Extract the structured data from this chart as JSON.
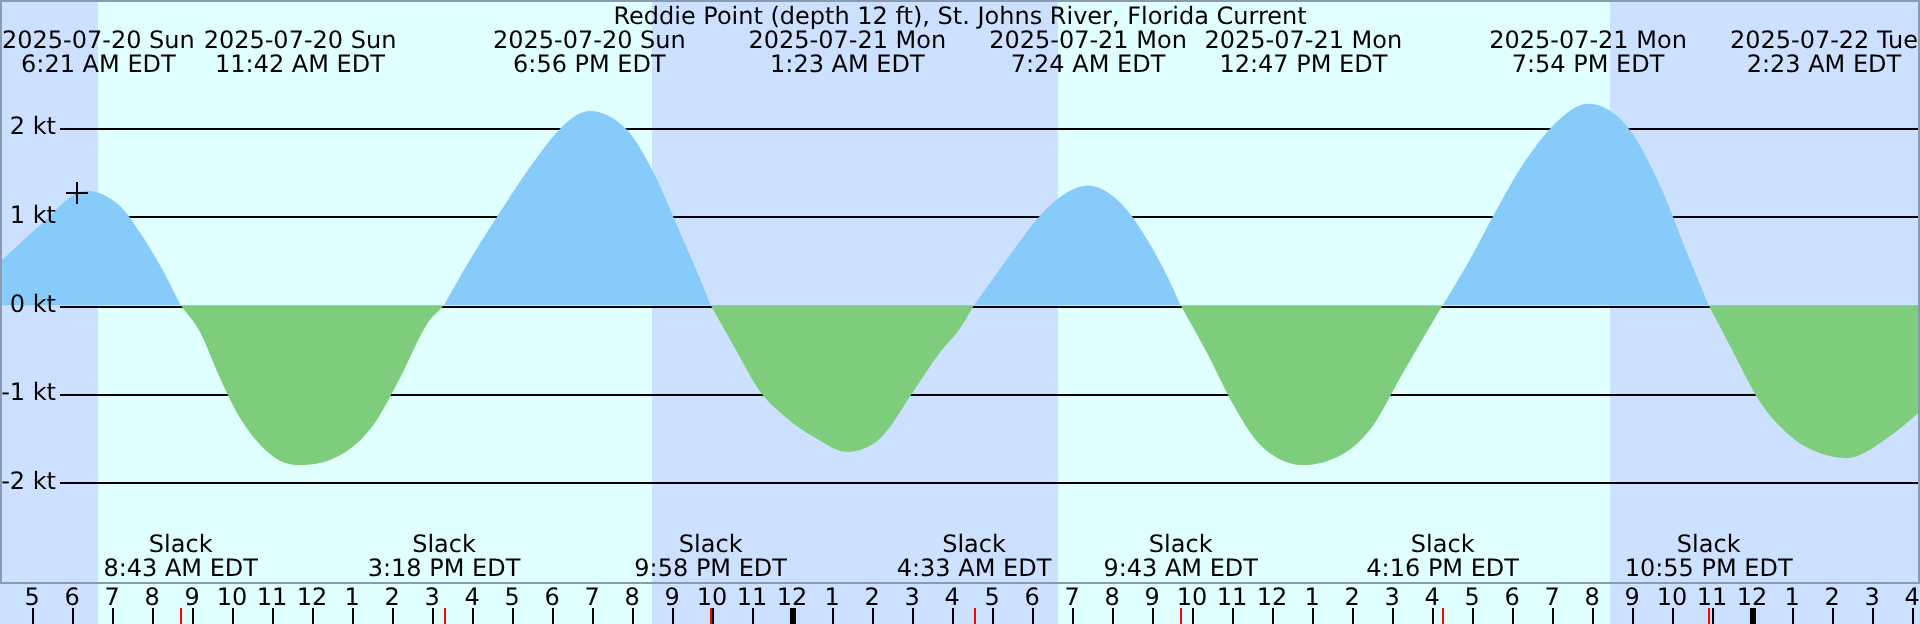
{
  "chart_data": {
    "type": "area",
    "title": "Reddie Point (depth 12 ft), St. Johns River, Florida Current",
    "x": [
      "2025-07-20T04:12",
      "2025-07-20T05:12",
      "2025-07-20T06:21",
      "2025-07-20T07:12",
      "2025-07-20T07:42",
      "2025-07-20T08:12",
      "2025-07-20T08:43",
      "2025-07-20T09:12",
      "2025-07-20T09:42",
      "2025-07-20T10:12",
      "2025-07-20T10:42",
      "2025-07-20T11:12",
      "2025-07-20T11:42",
      "2025-07-20T12:42",
      "2025-07-20T13:32",
      "2025-07-20T14:12",
      "2025-07-20T14:52",
      "2025-07-20T15:18",
      "2025-07-20T15:52",
      "2025-07-20T16:42",
      "2025-07-20T17:32",
      "2025-07-20T18:22",
      "2025-07-20T18:56",
      "2025-07-20T19:52",
      "2025-07-20T20:32",
      "2025-07-20T21:12",
      "2025-07-20T21:42",
      "2025-07-20T21:58",
      "2025-07-20T22:32",
      "2025-07-20T23:12",
      "2025-07-20T23:52",
      "2025-07-21T00:32",
      "2025-07-21T01:23",
      "2025-07-21T02:12",
      "2025-07-21T03:02",
      "2025-07-21T03:42",
      "2025-07-21T04:12",
      "2025-07-21T04:33",
      "2025-07-21T05:12",
      "2025-07-21T06:12",
      "2025-07-21T06:52",
      "2025-07-21T07:24",
      "2025-07-21T08:12",
      "2025-07-21T08:52",
      "2025-07-21T09:22",
      "2025-07-21T09:43",
      "2025-07-21T10:22",
      "2025-07-21T11:02",
      "2025-07-21T11:42",
      "2025-07-21T12:47",
      "2025-07-21T13:52",
      "2025-07-21T14:32",
      "2025-07-21T15:12",
      "2025-07-21T15:52",
      "2025-07-21T16:16",
      "2025-07-21T16:52",
      "2025-07-21T17:32",
      "2025-07-21T18:22",
      "2025-07-21T19:12",
      "2025-07-21T19:54",
      "2025-07-21T20:52",
      "2025-07-21T21:42",
      "2025-07-21T22:22",
      "2025-07-21T22:55",
      "2025-07-21T23:32",
      "2025-07-22T00:12",
      "2025-07-22T01:02",
      "2025-07-22T01:52",
      "2025-07-22T02:23",
      "2025-07-22T03:22",
      "2025-07-22T04:12"
    ],
    "series": [
      {
        "color": "#87cbfa",
        "values": [
          0.49,
          0.9,
          1.29,
          1.12,
          0.82,
          0.45,
          0,
          null,
          null,
          null,
          null,
          null,
          null,
          null,
          null,
          null,
          null,
          0,
          0.45,
          1.05,
          1.61,
          2.06,
          2.19,
          1.98,
          1.5,
          0.82,
          0.3,
          0,
          null,
          null,
          null,
          null,
          null,
          null,
          null,
          null,
          null,
          0,
          0.41,
          1.01,
          1.27,
          1.35,
          1.16,
          0.75,
          0.34,
          0,
          null,
          null,
          null,
          null,
          null,
          null,
          null,
          null,
          0,
          0.45,
          1.01,
          1.65,
          2.1,
          2.27,
          2.02,
          1.35,
          0.6,
          0,
          null,
          null,
          null,
          null,
          null,
          null,
          null
        ]
      },
      {
        "color": "#7dcd7d",
        "values": [
          null,
          null,
          null,
          null,
          null,
          null,
          0,
          -0.3,
          -0.82,
          -1.27,
          -1.57,
          -1.75,
          -1.8,
          -1.69,
          -1.35,
          -0.82,
          -0.22,
          0,
          null,
          null,
          null,
          null,
          null,
          null,
          null,
          null,
          null,
          0,
          -0.45,
          -0.97,
          -1.27,
          -1.48,
          -1.65,
          -1.5,
          -0.97,
          -0.53,
          -0.26,
          0,
          null,
          null,
          null,
          null,
          null,
          null,
          null,
          0,
          -0.53,
          -1.12,
          -1.57,
          -1.8,
          -1.65,
          -1.35,
          -0.82,
          -0.3,
          0,
          null,
          null,
          null,
          null,
          null,
          null,
          null,
          null,
          0,
          -0.53,
          -1.09,
          -1.5,
          -1.69,
          -1.72,
          -1.5,
          -1.2
        ]
      }
    ],
    "xlim": [
      "2025-07-20T04:12",
      "2025-07-22T04:12"
    ],
    "xticks": [
      {
        "value": "2025-07-20T05:00",
        "label": "5"
      },
      {
        "value": "2025-07-20T06:00",
        "label": "6"
      },
      {
        "value": "2025-07-20T07:00",
        "label": "7"
      },
      {
        "value": "2025-07-20T08:00",
        "label": "8"
      },
      {
        "value": "2025-07-20T09:00",
        "label": "9"
      },
      {
        "value": "2025-07-20T10:00",
        "label": "10"
      },
      {
        "value": "2025-07-20T11:00",
        "label": "11"
      },
      {
        "value": "2025-07-20T12:00",
        "label": "12"
      },
      {
        "value": "2025-07-20T13:00",
        "label": "1"
      },
      {
        "value": "2025-07-20T14:00",
        "label": "2"
      },
      {
        "value": "2025-07-20T15:00",
        "label": "3"
      },
      {
        "value": "2025-07-20T16:00",
        "label": "4"
      },
      {
        "value": "2025-07-20T17:00",
        "label": "5"
      },
      {
        "value": "2025-07-20T18:00",
        "label": "6"
      },
      {
        "value": "2025-07-20T19:00",
        "label": "7"
      },
      {
        "value": "2025-07-20T20:00",
        "label": "8"
      },
      {
        "value": "2025-07-20T21:00",
        "label": "9"
      },
      {
        "value": "2025-07-20T22:00",
        "label": "10"
      },
      {
        "value": "2025-07-20T23:00",
        "label": "11"
      },
      {
        "value": "2025-07-21T00:00",
        "label": "12"
      },
      {
        "value": "2025-07-21T01:00",
        "label": "1"
      },
      {
        "value": "2025-07-21T02:00",
        "label": "2"
      },
      {
        "value": "2025-07-21T03:00",
        "label": "3"
      },
      {
        "value": "2025-07-21T04:00",
        "label": "4"
      },
      {
        "value": "2025-07-21T05:00",
        "label": "5"
      },
      {
        "value": "2025-07-21T06:00",
        "label": "6"
      },
      {
        "value": "2025-07-21T07:00",
        "label": "7"
      },
      {
        "value": "2025-07-21T08:00",
        "label": "8"
      },
      {
        "value": "2025-07-21T09:00",
        "label": "9"
      },
      {
        "value": "2025-07-21T10:00",
        "label": "10"
      },
      {
        "value": "2025-07-21T11:00",
        "label": "11"
      },
      {
        "value": "2025-07-21T12:00",
        "label": "12"
      },
      {
        "value": "2025-07-21T13:00",
        "label": "1"
      },
      {
        "value": "2025-07-21T14:00",
        "label": "2"
      },
      {
        "value": "2025-07-21T15:00",
        "label": "3"
      },
      {
        "value": "2025-07-21T16:00",
        "label": "4"
      },
      {
        "value": "2025-07-21T17:00",
        "label": "5"
      },
      {
        "value": "2025-07-21T18:00",
        "label": "6"
      },
      {
        "value": "2025-07-21T19:00",
        "label": "7"
      },
      {
        "value": "2025-07-21T20:00",
        "label": "8"
      },
      {
        "value": "2025-07-21T21:00",
        "label": "9"
      },
      {
        "value": "2025-07-21T22:00",
        "label": "10"
      },
      {
        "value": "2025-07-21T23:00",
        "label": "11"
      },
      {
        "value": "2025-07-22T00:00",
        "label": "12"
      },
      {
        "value": "2025-07-22T01:00",
        "label": "1"
      },
      {
        "value": "2025-07-22T02:00",
        "label": "2"
      },
      {
        "value": "2025-07-22T03:00",
        "label": "3"
      },
      {
        "value": "2025-07-22T04:00",
        "label": "4"
      }
    ],
    "ylim": [
      -3.14,
      3.44
    ],
    "yticks": [
      {
        "value": -2,
        "label": "-2 kt"
      },
      {
        "value": -1,
        "label": "-1 kt"
      },
      {
        "value": 0,
        "label": "0 kt"
      },
      {
        "value": 1,
        "label": "1 kt"
      },
      {
        "value": 2,
        "label": "2 kt"
      }
    ],
    "grid": "y",
    "bands": [
      {
        "axis": "x",
        "from": "2025-07-20T04:12",
        "to": "2025-07-20T06:39",
        "color": "#cce0ff"
      },
      {
        "axis": "x",
        "from": "2025-07-20T06:39",
        "to": "2025-07-20T20:30",
        "color": "#e0ffff"
      },
      {
        "axis": "x",
        "from": "2025-07-20T20:30",
        "to": "2025-07-21T06:39",
        "color": "#cce0ff"
      },
      {
        "axis": "x",
        "from": "2025-07-21T06:39",
        "to": "2025-07-21T20:27",
        "color": "#e0ffff"
      },
      {
        "axis": "x",
        "from": "2025-07-21T20:27",
        "to": "2025-07-22T04:12",
        "color": "#cce0ff"
      }
    ],
    "annotations": [
      "2025-07-20 Sun\n6:21 AM EDT",
      "2025-07-20 Sun\n11:42 AM EDT",
      "2025-07-20 Sun\n6:56 PM EDT",
      "2025-07-21 Mon\n1:23 AM EDT",
      "2025-07-21 Mon\n7:24 AM EDT",
      "2025-07-21 Mon\n12:47 PM EDT",
      "2025-07-21 Mon\n7:54 PM EDT",
      "2025-07-22 Tue\n2:23 AM EDT",
      {
        "text": "Slack\n8:43 AM EDT",
        "x": "2025-07-20T08:43"
      },
      {
        "text": "Slack\n3:18 PM EDT",
        "x": "2025-07-20T15:18"
      },
      {
        "text": "Slack\n9:58 PM EDT",
        "x": "2025-07-20T21:58"
      },
      {
        "text": "Slack\n4:33 AM EDT",
        "x": "2025-07-21T04:33"
      },
      {
        "text": "Slack\n9:43 AM EDT",
        "x": "2025-07-21T09:43"
      },
      {
        "text": "Slack\n4:16 PM EDT",
        "x": "2025-07-21T16:16"
      },
      {
        "text": "Slack\n10:55 PM EDT",
        "x": "2025-07-21T22:55"
      }
    ]
  }
}
